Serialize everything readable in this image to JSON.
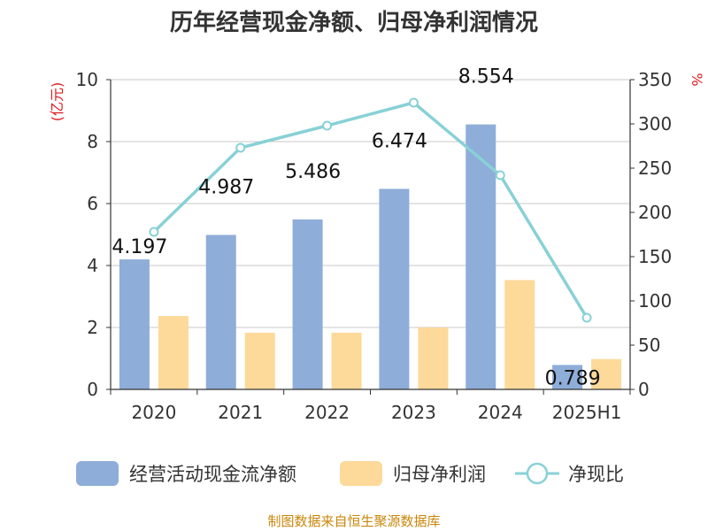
{
  "chart_data": {
    "type": "bar",
    "title": "历年经营现金净额、归母净利润情况",
    "categories": [
      "2020",
      "2021",
      "2022",
      "2023",
      "2024",
      "2025H1"
    ],
    "left_axis": {
      "unit": "(亿元)",
      "ylim": [
        0,
        10
      ],
      "ticks": [
        "0",
        "2",
        "4",
        "6",
        "8",
        "10"
      ]
    },
    "right_axis": {
      "unit": "%",
      "ylim": [
        0,
        350
      ],
      "ticks": [
        "0",
        "50",
        "100",
        "150",
        "200",
        "250",
        "300",
        "350"
      ]
    },
    "series": [
      {
        "name": "经营活动现金流净额",
        "kind": "bar",
        "axis": "left",
        "color": "#8eadd9",
        "values": [
          4.197,
          4.987,
          5.486,
          6.474,
          8.554,
          0.789
        ],
        "labels": [
          "4.197",
          "4.987",
          "5.486",
          "6.474",
          "8.554",
          "0.789"
        ]
      },
      {
        "name": "归母净利润",
        "kind": "bar",
        "axis": "left",
        "color": "#fdd99a",
        "values": [
          2.37,
          1.83,
          1.83,
          2.0,
          3.53,
          0.98
        ]
      },
      {
        "name": "净现比",
        "kind": "line",
        "axis": "right",
        "color": "#88d1d6",
        "values": [
          178,
          273,
          298,
          324,
          242,
          81
        ]
      }
    ],
    "grid": true,
    "legend_position": "bottom"
  },
  "source_text": "制图数据来自恒生聚源数据库"
}
